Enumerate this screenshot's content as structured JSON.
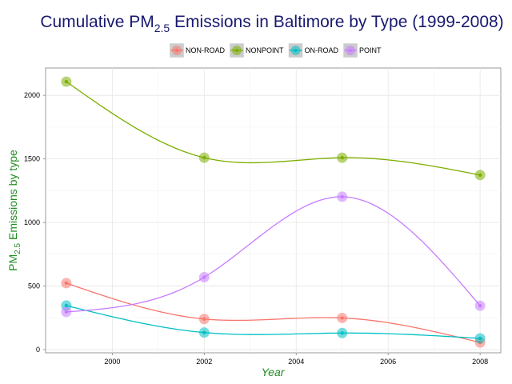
{
  "chart_data": {
    "type": "line",
    "title_parts": [
      "Cumulative PM",
      "2.5",
      " Emissions in Baltimore by Type (1999-2008)"
    ],
    "xlabel": "Year",
    "ylabel_parts": [
      "PM",
      "2.5",
      " Emissions by type"
    ],
    "x": [
      1999,
      2002,
      2005,
      2008
    ],
    "xlim": [
      1998.55,
      2008.45
    ],
    "ylim": [
      -25,
      2215
    ],
    "x_ticks": [
      2000,
      2002,
      2004,
      2006,
      2008
    ],
    "y_ticks": [
      0,
      500,
      1000,
      1500,
      2000
    ],
    "legend_position": "top",
    "grid": true,
    "series": [
      {
        "name": "NON-ROAD",
        "color": "#F8766D",
        "values": [
          522.94,
          240.85,
          248.93,
          55.82
        ]
      },
      {
        "name": "NONPOINT",
        "color": "#7CAE00",
        "values": [
          2107.63,
          1509.5,
          1509.5,
          1373.21
        ]
      },
      {
        "name": "ON-ROAD",
        "color": "#00BFC4",
        "values": [
          346.82,
          134.31,
          130.43,
          88.28
        ]
      },
      {
        "name": "POINT",
        "color": "#C77CFF",
        "values": [
          296.8,
          569.26,
          1202.49,
          344.98
        ]
      }
    ]
  }
}
